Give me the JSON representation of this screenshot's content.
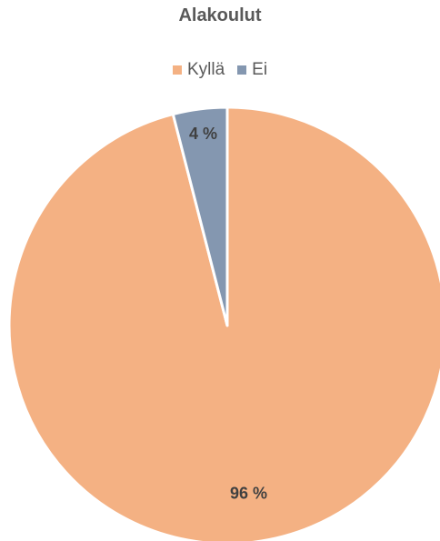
{
  "chart_data": {
    "type": "pie",
    "title": "Alakoulut",
    "legend_position": "top",
    "slices": [
      {
        "name": "Kyllä",
        "value": 96,
        "label": "96 %",
        "color": "#F4B183"
      },
      {
        "name": "Ei",
        "value": 4,
        "label": "4 %",
        "color": "#8497B0"
      }
    ]
  }
}
